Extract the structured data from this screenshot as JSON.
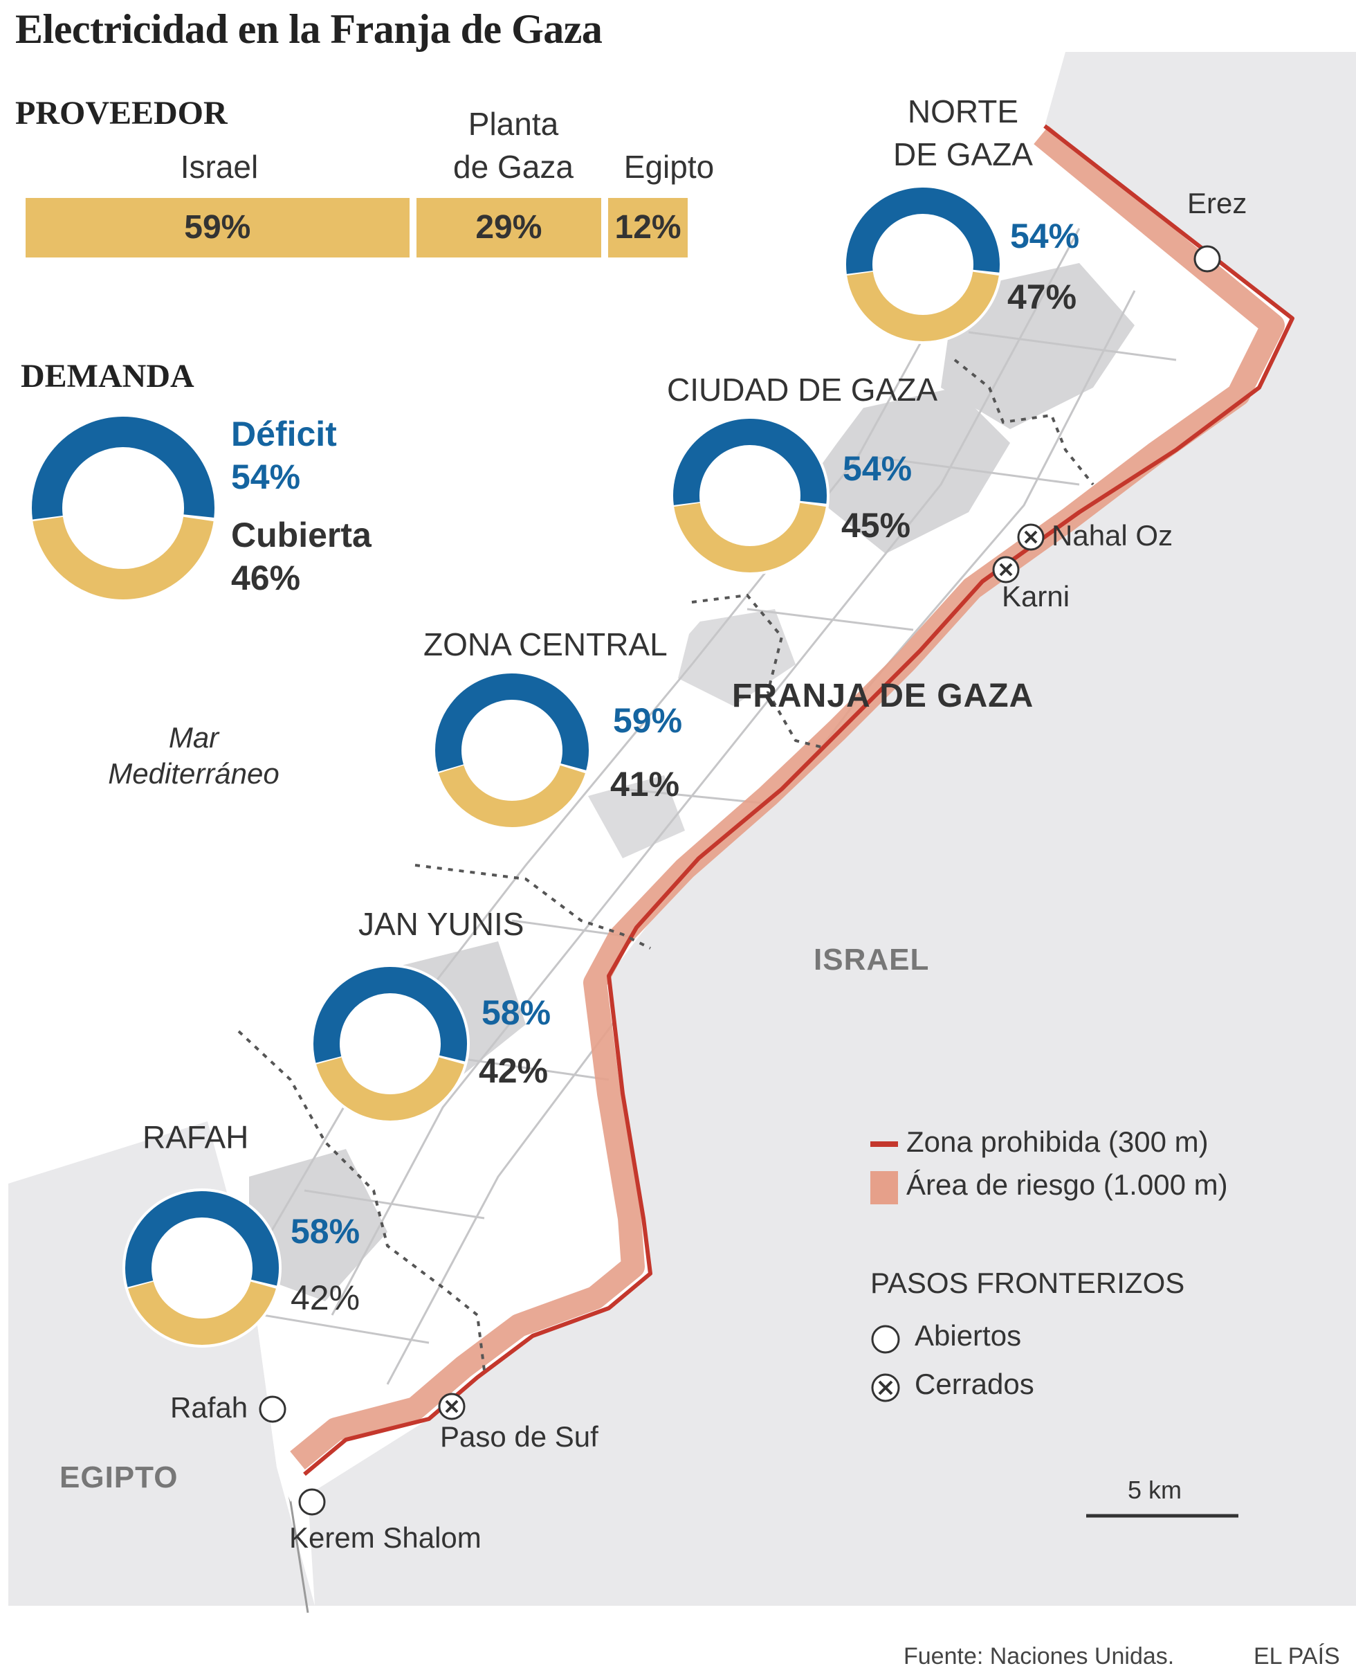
{
  "title": "Electricidad en la Franja de Gaza",
  "supplier": {
    "heading": "PROVEEDOR",
    "items": [
      {
        "name": "Israel",
        "value": "59%",
        "share": 59
      },
      {
        "name": "Planta\nde Gaza",
        "value": "29%",
        "share": 29
      },
      {
        "name": "Egipto",
        "value": "12%",
        "share": 12
      }
    ]
  },
  "demand": {
    "heading": "DEMANDA",
    "deficit_label": "Déficit",
    "deficit_value": "54%",
    "covered_label": "Cubierta",
    "covered_value": "46%",
    "deficit_share": 54
  },
  "regions": [
    {
      "name": "NORTE\nDE GAZA",
      "deficit": "54%",
      "covered": "47%",
      "deficit_share": 54
    },
    {
      "name": "CIUDAD DE GAZA",
      "deficit": "54%",
      "covered": "45%",
      "deficit_share": 54
    },
    {
      "name": "ZONA CENTRAL",
      "deficit": "59%",
      "covered": "41%",
      "deficit_share": 59
    },
    {
      "name": "JAN YUNIS",
      "deficit": "58%",
      "covered": "42%",
      "deficit_share": 58
    },
    {
      "name": "RAFAH",
      "deficit": "58%",
      "covered": "42%",
      "deficit_share": 58
    }
  ],
  "map": {
    "sea_label": "Mar\nMediterráneo",
    "strip_label": "FRANJA DE GAZA",
    "israel_label": "ISRAEL",
    "egypt_label": "EGIPTO",
    "crossings": [
      {
        "name": "Erez",
        "status": "open"
      },
      {
        "name": "Nahal Oz",
        "status": "closed"
      },
      {
        "name": "Karni",
        "status": "closed"
      },
      {
        "name": "Paso de Suf",
        "status": "closed"
      },
      {
        "name": "Rafah",
        "status": "open"
      },
      {
        "name": "Kerem Shalom",
        "status": "open"
      }
    ],
    "scale_label": "5 km"
  },
  "legend": {
    "forbidden_zone": "Zona prohibida (300 m)",
    "risk_area": "Área de riesgo (1.000 m)",
    "crossings_heading": "PASOS FRONTERIZOS",
    "open": "Abiertos",
    "closed": "Cerrados"
  },
  "colors": {
    "deficit": "#1464a0",
    "covered": "#e8bf67",
    "forbidden_zone": "#c4372c",
    "risk_area": "#e6a08a",
    "land": "#e9e9eb",
    "urban": "#d6d6d8"
  },
  "footer": {
    "source": "Fuente: Naciones Unidas.",
    "publisher": "EL PAÍS"
  }
}
